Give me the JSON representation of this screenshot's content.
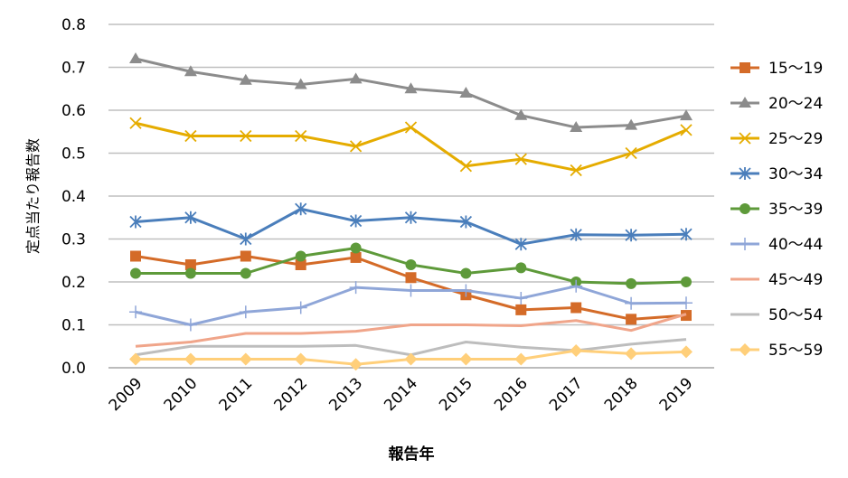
{
  "chart_data": {
    "type": "line",
    "title": "",
    "xlabel": "報告年",
    "ylabel": "定点当たり報告数",
    "ylim": [
      0,
      0.8
    ],
    "yticks": [
      "0.0",
      "0.1",
      "0.2",
      "0.3",
      "0.4",
      "0.5",
      "0.6",
      "0.7",
      "0.8"
    ],
    "grid": true,
    "legend_position": "right",
    "categories": [
      "2009",
      "2010",
      "2011",
      "2012",
      "2013",
      "2014",
      "2015",
      "2016",
      "2017",
      "2018",
      "2019"
    ],
    "series": [
      {
        "name": "15～19",
        "color": "#D46B28",
        "marker": "square",
        "values": [
          0.26,
          0.24,
          0.26,
          0.24,
          0.257,
          0.21,
          0.17,
          0.135,
          0.14,
          0.113,
          0.122
        ]
      },
      {
        "name": "20～24",
        "color": "#8C8C8C",
        "marker": "triangle",
        "values": [
          0.72,
          0.69,
          0.67,
          0.66,
          0.673,
          0.65,
          0.64,
          0.588,
          0.56,
          0.565,
          0.587
        ]
      },
      {
        "name": "25～29",
        "color": "#E5AC00",
        "marker": "x",
        "values": [
          0.57,
          0.54,
          0.54,
          0.54,
          0.516,
          0.56,
          0.47,
          0.486,
          0.46,
          0.5,
          0.554
        ]
      },
      {
        "name": "30～34",
        "color": "#4A7EBB",
        "marker": "asterisk",
        "values": [
          0.34,
          0.35,
          0.3,
          0.37,
          0.342,
          0.35,
          0.34,
          0.288,
          0.31,
          0.309,
          0.311
        ]
      },
      {
        "name": "35～39",
        "color": "#5E9A3A",
        "marker": "circle",
        "values": [
          0.22,
          0.22,
          0.22,
          0.26,
          0.279,
          0.24,
          0.22,
          0.233,
          0.2,
          0.196,
          0.2
        ]
      },
      {
        "name": "40～44",
        "color": "#8FA6D8",
        "marker": "plus",
        "values": [
          0.13,
          0.1,
          0.13,
          0.14,
          0.187,
          0.18,
          0.18,
          0.162,
          0.19,
          0.15,
          0.151
        ]
      },
      {
        "name": "45～49",
        "color": "#F0A58A",
        "marker": "none",
        "values": [
          0.05,
          0.06,
          0.08,
          0.08,
          0.085,
          0.1,
          0.1,
          0.098,
          0.11,
          0.087,
          0.125
        ]
      },
      {
        "name": "50～54",
        "color": "#BDBDBD",
        "marker": "none",
        "values": [
          0.03,
          0.05,
          0.05,
          0.05,
          0.052,
          0.03,
          0.06,
          0.048,
          0.04,
          0.055,
          0.066
        ]
      },
      {
        "name": "55～59",
        "color": "#FFCF7A",
        "marker": "diamond",
        "values": [
          0.02,
          0.02,
          0.02,
          0.02,
          0.008,
          0.02,
          0.02,
          0.02,
          0.04,
          0.033,
          0.037
        ]
      }
    ]
  }
}
